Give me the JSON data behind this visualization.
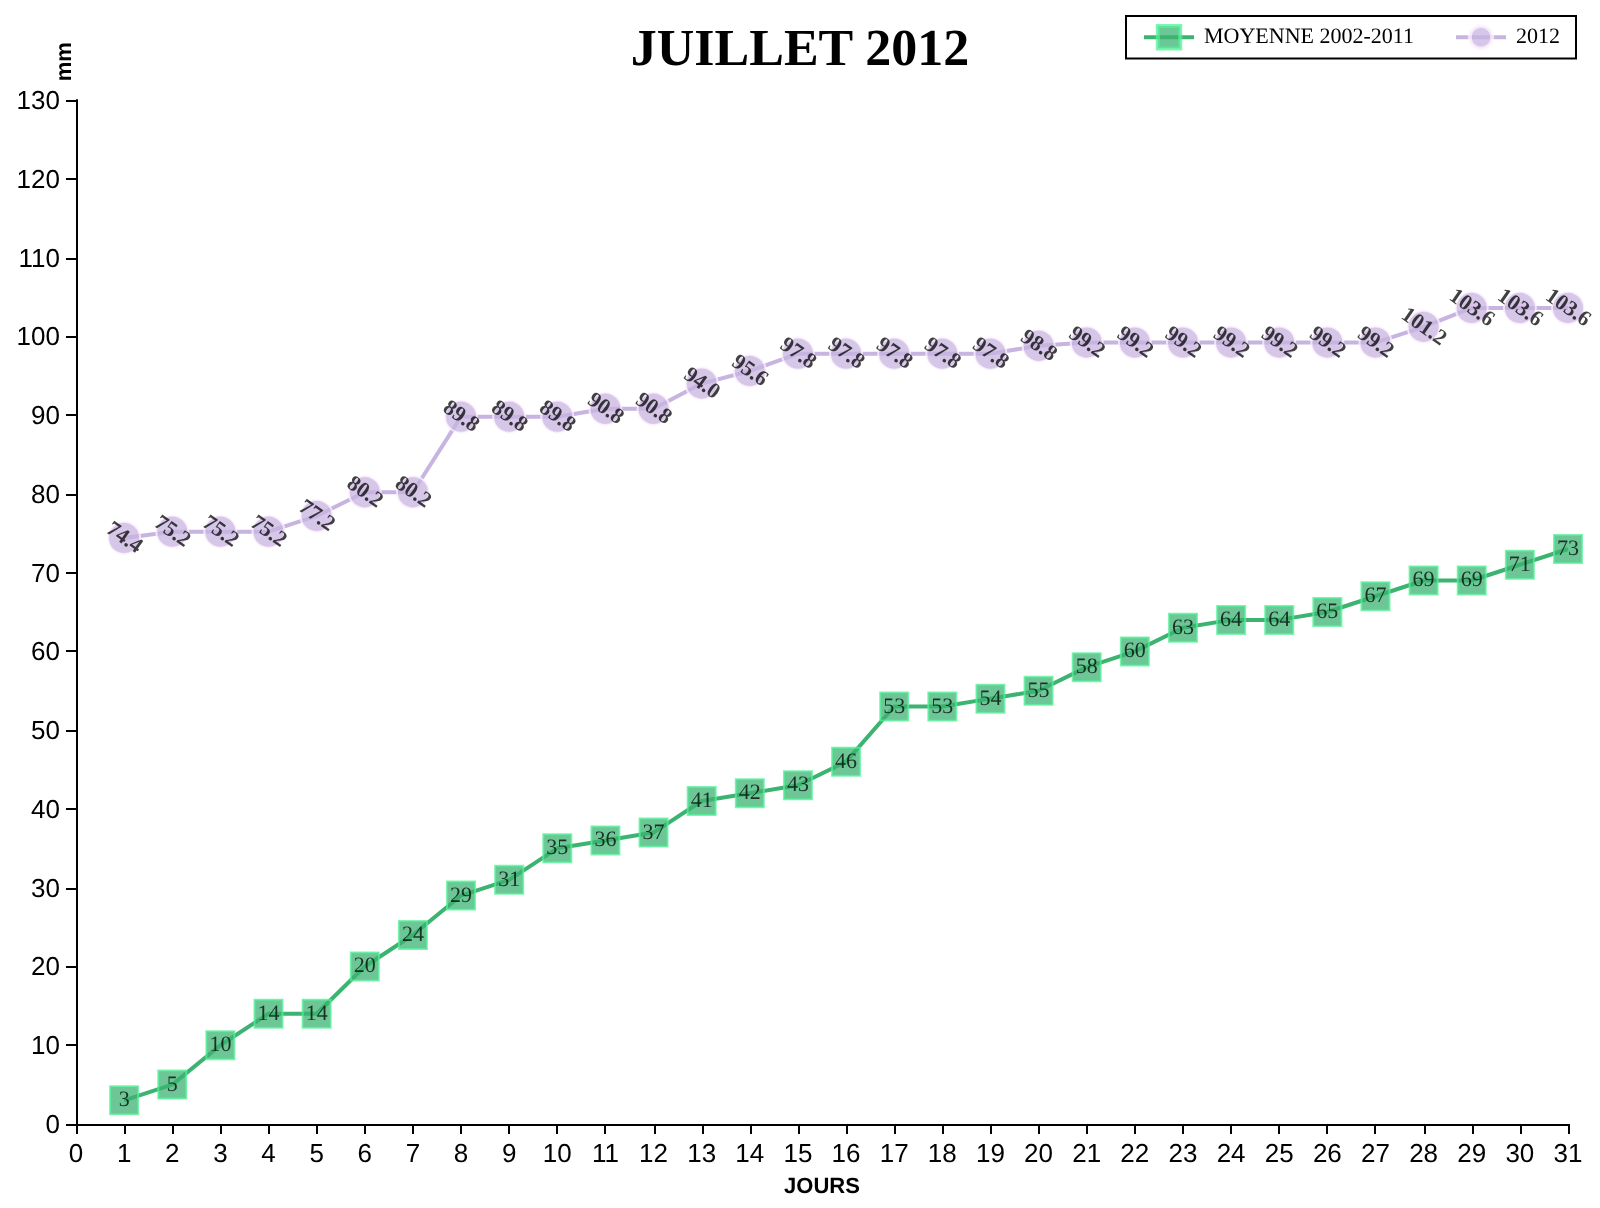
{
  "chart_data": {
    "type": "line",
    "title": "JUILLET 2012",
    "xlabel": "JOURS",
    "ylabel": "mm",
    "x": [
      1,
      2,
      3,
      4,
      5,
      6,
      7,
      8,
      9,
      10,
      11,
      12,
      13,
      14,
      15,
      16,
      17,
      18,
      19,
      20,
      21,
      22,
      23,
      24,
      25,
      26,
      27,
      28,
      29,
      30,
      31
    ],
    "xlim": [
      0,
      31
    ],
    "xticks": [
      0,
      1,
      2,
      3,
      4,
      5,
      6,
      7,
      8,
      9,
      10,
      11,
      12,
      13,
      14,
      15,
      16,
      17,
      18,
      19,
      20,
      21,
      22,
      23,
      24,
      25,
      26,
      27,
      28,
      29,
      30,
      31
    ],
    "ylim": [
      0,
      130
    ],
    "yticks": [
      0,
      10,
      20,
      30,
      40,
      50,
      60,
      70,
      80,
      90,
      100,
      110,
      120,
      130
    ],
    "grid": false,
    "legend": "top right",
    "data_labels": true,
    "series": [
      {
        "name": "MOYENNE 2002-2011",
        "color": "#3cb371",
        "marker": "square",
        "values": [
          3,
          5,
          10,
          14,
          14,
          20,
          24,
          29,
          31,
          35,
          36,
          37,
          41,
          42,
          43,
          46,
          53,
          53,
          54,
          55,
          58,
          60,
          63,
          64,
          64,
          65,
          67,
          69,
          69,
          71,
          73
        ]
      },
      {
        "name": "2012",
        "color": "#c8b4e0",
        "marker": "circle",
        "values": [
          74.4,
          75.2,
          75.2,
          75.2,
          77.2,
          80.2,
          80.2,
          89.8,
          89.8,
          89.8,
          90.8,
          90.8,
          94.0,
          95.6,
          97.8,
          97.8,
          97.8,
          97.8,
          97.8,
          98.8,
          99.2,
          99.2,
          99.2,
          99.2,
          99.2,
          99.2,
          99.2,
          101.2,
          103.6,
          103.6,
          103.6
        ],
        "value_labels": [
          "74.4",
          "75.2",
          "75.2",
          "75.2",
          "77.2",
          "80.2",
          "80.2",
          "89.8",
          "89.8",
          "89.8",
          "90.8",
          "90.8",
          "94.0",
          "95.6",
          "97.8",
          "97.8",
          "97.8",
          "97.8",
          "97.8",
          "98.8",
          "99.2",
          "99.2",
          "99.2",
          "99.2",
          "99.2",
          "99.2",
          "99.2",
          "101.2",
          "103.6",
          "103.6",
          "103.6"
        ]
      }
    ]
  }
}
